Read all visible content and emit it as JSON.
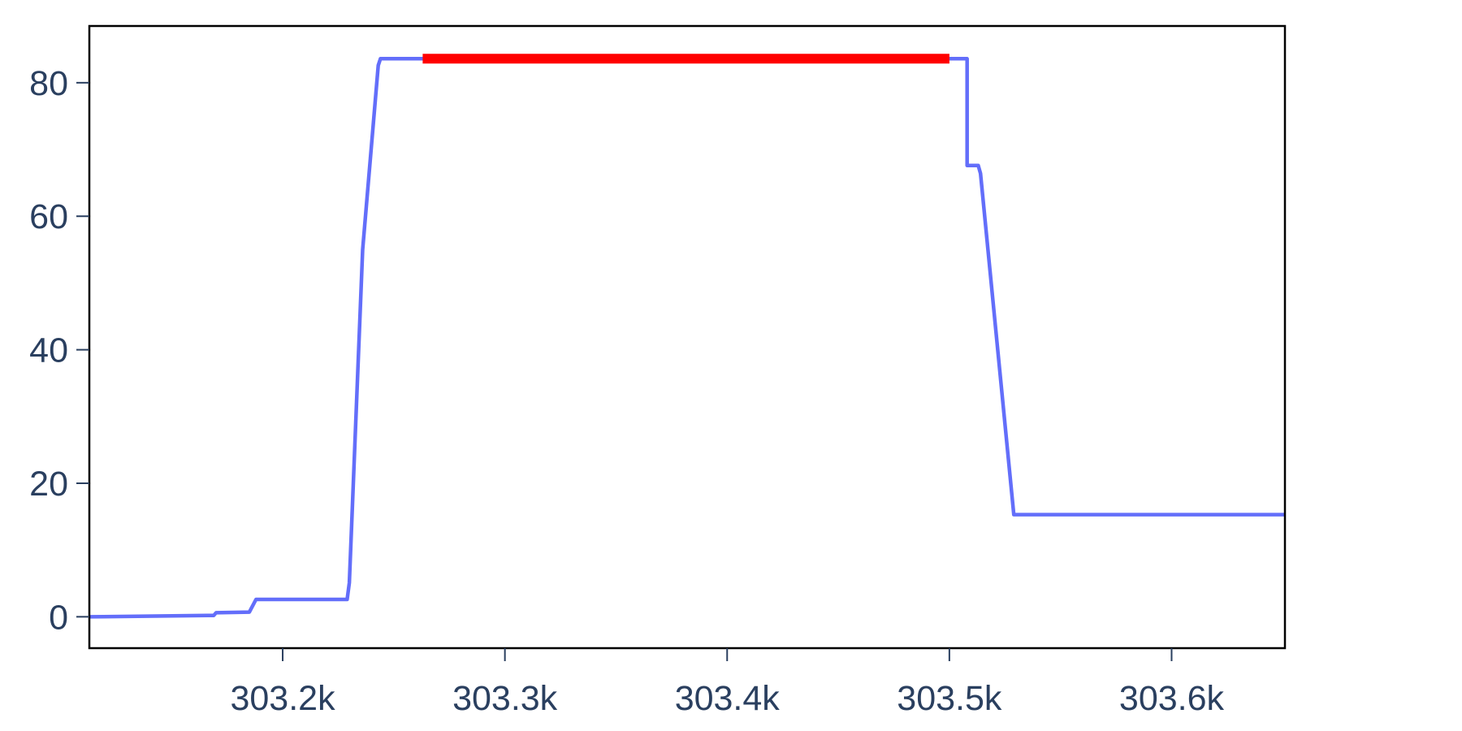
{
  "chart_data": {
    "type": "line",
    "title": "",
    "xlabel": "",
    "ylabel": "",
    "xlim": [
      303113,
      303651
    ],
    "ylim": [
      -4.7,
      88.5
    ],
    "x_ticks": [
      303200,
      303300,
      303400,
      303500,
      303600
    ],
    "x_tick_labels": [
      "303.2k",
      "303.3k",
      "303.4k",
      "303.5k",
      "303.6k"
    ],
    "y_ticks": [
      0,
      20,
      40,
      60,
      80
    ],
    "y_tick_labels": [
      "0",
      "20",
      "40",
      "60",
      "80"
    ],
    "grid": false,
    "legend": "none",
    "series": [
      {
        "color": "#636efa",
        "x": [
          303113,
          303169,
          303170,
          303185,
          303188,
          303229,
          303230,
          303236,
          303243,
          303244,
          303263,
          303501,
          303503,
          303508,
          303508,
          303513,
          303514,
          303529,
          303651
        ],
        "y": [
          0,
          0.2,
          0.6,
          0.7,
          2.6,
          2.6,
          5.1,
          55,
          82.6,
          83.6,
          83.6,
          83.6,
          83.6,
          83.6,
          67.6,
          67.6,
          66.4,
          15.3,
          15.3
        ]
      },
      {
        "color": "#ff0000",
        "x": [
          303263,
          303500
        ],
        "y": [
          83.6,
          83.6
        ]
      }
    ]
  }
}
